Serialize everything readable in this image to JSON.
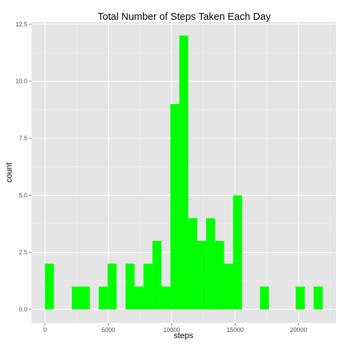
{
  "chart_data": {
    "type": "bar",
    "title": "Total Number of Steps Taken Each Day",
    "xlabel": "steps",
    "ylabel": "count",
    "bin_width": 706.67,
    "bins": [
      {
        "x0": 0,
        "x1": 706.67,
        "count": 2
      },
      {
        "x0": 706.67,
        "x1": 1413.33,
        "count": 0
      },
      {
        "x0": 1413.33,
        "x1": 2120,
        "count": 0
      },
      {
        "x0": 2120,
        "x1": 2826.67,
        "count": 1
      },
      {
        "x0": 2826.67,
        "x1": 3533.33,
        "count": 1
      },
      {
        "x0": 3533.33,
        "x1": 4240,
        "count": 0
      },
      {
        "x0": 4240,
        "x1": 4946.67,
        "count": 1
      },
      {
        "x0": 4946.67,
        "x1": 5653.33,
        "count": 2
      },
      {
        "x0": 5653.33,
        "x1": 6360,
        "count": 0
      },
      {
        "x0": 6360,
        "x1": 7066.67,
        "count": 2
      },
      {
        "x0": 7066.67,
        "x1": 7773.33,
        "count": 1
      },
      {
        "x0": 7773.33,
        "x1": 8480,
        "count": 2
      },
      {
        "x0": 8480,
        "x1": 9186.67,
        "count": 3
      },
      {
        "x0": 9186.67,
        "x1": 9893.33,
        "count": 1
      },
      {
        "x0": 9893.33,
        "x1": 10600,
        "count": 9
      },
      {
        "x0": 10600,
        "x1": 11306.67,
        "count": 12
      },
      {
        "x0": 11306.67,
        "x1": 12013.33,
        "count": 4
      },
      {
        "x0": 12013.33,
        "x1": 12720,
        "count": 3
      },
      {
        "x0": 12720,
        "x1": 13426.67,
        "count": 4
      },
      {
        "x0": 13426.67,
        "x1": 14133.33,
        "count": 3
      },
      {
        "x0": 14133.33,
        "x1": 14840,
        "count": 2
      },
      {
        "x0": 14840,
        "x1": 15546.67,
        "count": 5
      },
      {
        "x0": 15546.67,
        "x1": 16253.33,
        "count": 0
      },
      {
        "x0": 16253.33,
        "x1": 16960,
        "count": 0
      },
      {
        "x0": 16960,
        "x1": 17666.67,
        "count": 1
      },
      {
        "x0": 17666.67,
        "x1": 18373.33,
        "count": 0
      },
      {
        "x0": 18373.33,
        "x1": 19080,
        "count": 0
      },
      {
        "x0": 19080,
        "x1": 19786.67,
        "count": 0
      },
      {
        "x0": 19786.67,
        "x1": 20493.33,
        "count": 1
      },
      {
        "x0": 20493.33,
        "x1": 21200,
        "count": 0
      },
      {
        "x0": 21200,
        "x1": 21906.67,
        "count": 1
      }
    ],
    "xlim": [
      -1060,
      22966
    ],
    "ylim": [
      -0.6,
      12.6
    ],
    "x_ticks": [
      0,
      5000,
      10000,
      15000,
      20000
    ],
    "x_tick_labels": [
      "0",
      "5000",
      "10000",
      "15000",
      "20000"
    ],
    "y_ticks": [
      0,
      2.5,
      5,
      7.5,
      10,
      12.5
    ],
    "y_tick_labels": [
      "0.0",
      "2.5",
      "5.0",
      "7.5",
      "10.0",
      "12.5"
    ],
    "grid": true,
    "bar_color": "#00ff00",
    "panel_color": "#e5e5e5",
    "grid_color": "#ffffff"
  }
}
